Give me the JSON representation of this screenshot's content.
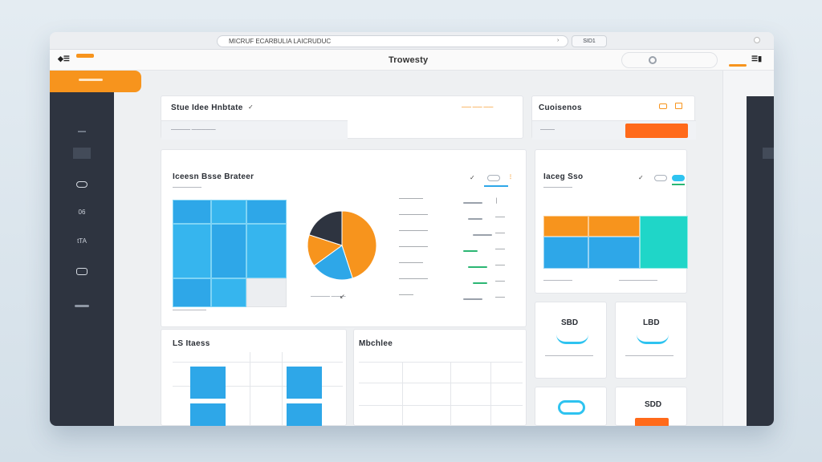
{
  "browser": {
    "address": "MICRUF ECARBULIA LAICRUDUC",
    "go_label": "›",
    "tab_label": "SID1"
  },
  "app": {
    "logo": "◆☰",
    "title": "Trowesty",
    "user_icon": "☰▮"
  },
  "sidebar": {
    "items": [
      {
        "icon": "dashboard-icon",
        "label": ""
      },
      {
        "icon": "grid-icon",
        "label": ""
      },
      {
        "icon": "ring-icon",
        "label": ""
      },
      {
        "icon": "analytics-icon",
        "label": "06"
      },
      {
        "icon": "report-icon",
        "label": "tTA"
      },
      {
        "icon": "card-icon",
        "label": ""
      },
      {
        "icon": "settings-icon",
        "label": ""
      }
    ]
  },
  "header_card": {
    "title": "Stue Idee Hnbtate",
    "check": "✓",
    "tabs_text": "——  —— ——",
    "subtitle": "———— —————"
  },
  "side_header_card": {
    "title": "Cuoisenos",
    "icons": [
      "cart-icon",
      "bag-icon"
    ],
    "label": "———",
    "button": ""
  },
  "main_chart_card": {
    "title": "Iceesn Bsse Brateer",
    "subtitle": "——————",
    "legend": [
      {
        "label": "—————",
        "value": "│",
        "color": "#9aa1ab"
      },
      {
        "label": "——————",
        "value": "——",
        "color": "#9aa1ab"
      },
      {
        "label": "——————",
        "value": "——",
        "color": "#9aa1ab"
      },
      {
        "label": "——————",
        "value": "——",
        "color": "#2bb673"
      },
      {
        "label": "—————",
        "value": "——",
        "color": "#2bb673"
      },
      {
        "label": "——————",
        "value": "——",
        "color": "#2bb673"
      },
      {
        "label": "———",
        "value": "——",
        "color": "#9aa1ab"
      }
    ],
    "pie_caption": "———— ———"
  },
  "side_chart_card": {
    "title": "Iaceg Sso",
    "subtitle": "——————",
    "caption_left": "——————",
    "caption_right": "————————"
  },
  "bottom_left_card": {
    "title": "LS Itaess"
  },
  "bottom_mid_card": {
    "title": "Mbchlee"
  },
  "stat_cards": [
    {
      "value": "SBD",
      "label": "——————————"
    },
    {
      "value": "LBD",
      "label": "——————————"
    },
    {
      "value": "",
      "label": ""
    },
    {
      "value": "SDD",
      "label": ""
    }
  ],
  "colors": {
    "orange": "#f7941d",
    "cta": "#ff6a1a",
    "blue": "#2ea7e8",
    "teal": "#1fd6c8",
    "dark": "#2e3440"
  },
  "chart_data": [
    {
      "type": "heatmap",
      "title": "",
      "cells": [
        {
          "value": 1,
          "color": "blue"
        },
        {
          "value": 1,
          "color": "blue"
        },
        {
          "value": 1,
          "color": "blue"
        },
        {
          "value": 1,
          "color": "blue"
        },
        {
          "value": 1,
          "color": "blue"
        },
        {
          "value": 1,
          "color": "blue"
        },
        {
          "value": 1,
          "color": "blue"
        },
        {
          "value": 1,
          "color": "blue"
        },
        {
          "value": 0,
          "color": "light"
        }
      ]
    },
    {
      "type": "pie",
      "title": "",
      "slices": [
        {
          "name": "",
          "value": 45,
          "color": "#f7941d"
        },
        {
          "name": "",
          "value": 20,
          "color": "#2ea7e8"
        },
        {
          "name": "",
          "value": 15,
          "color": "#f7941d"
        },
        {
          "name": "",
          "value": 20,
          "color": "#2e3440"
        }
      ]
    },
    {
      "type": "heatmap",
      "title": "",
      "cells": [
        {
          "value": 3,
          "color": "#f7941d"
        },
        {
          "value": 3,
          "color": "#f7941d"
        },
        {
          "value": 2,
          "color": "#1fd6c8"
        },
        {
          "value": 1,
          "color": "#2ea7e8"
        },
        {
          "value": 1,
          "color": "#2ea7e8"
        }
      ]
    }
  ]
}
